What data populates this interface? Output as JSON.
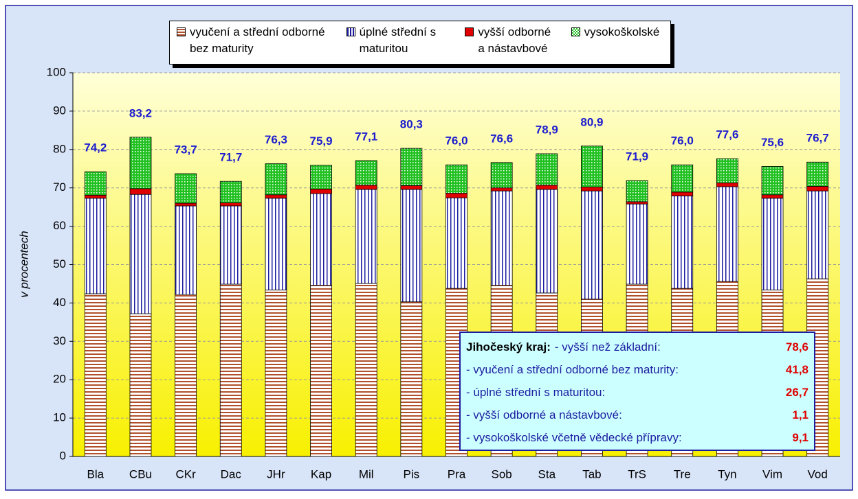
{
  "chart_data": {
    "type": "stacked_bar",
    "y_label": "v procentech",
    "categories": [
      "Bla",
      "CBu",
      "CKr",
      "Dac",
      "JHr",
      "Kap",
      "Mil",
      "Pis",
      "Pra",
      "Sob",
      "Sta",
      "Tab",
      "TrS",
      "Tre",
      "Tyn",
      "Vim",
      "Vod"
    ],
    "series": [
      {
        "name": "vyučení a střední odborné bez maturity",
        "color": "#b0502a",
        "pattern": "horizontal",
        "values": [
          42.4,
          37.2,
          42.2,
          44.9,
          43.4,
          44.6,
          45.1,
          40.3,
          43.8,
          44.6,
          42.6,
          41.0,
          44.9,
          43.8,
          45.6,
          43.4,
          46.3
        ]
      },
      {
        "name": "úplné střední s maturitou",
        "color": "#1c1ca0",
        "pattern": "vertical",
        "values": [
          24.9,
          31.1,
          23.1,
          20.4,
          23.9,
          23.9,
          24.5,
          29.3,
          23.6,
          24.6,
          27.0,
          28.2,
          20.9,
          24.1,
          24.7,
          23.9,
          22.9
        ]
      },
      {
        "name": "vyšší odborné a nástavbové",
        "color": "#e00000",
        "pattern": "solid",
        "values": [
          0.8,
          1.5,
          0.7,
          0.8,
          0.9,
          1.2,
          1.1,
          1.0,
          1.2,
          0.8,
          1.1,
          1.0,
          0.6,
          1.0,
          1.0,
          0.9,
          1.2
        ]
      },
      {
        "name": "vysokoškolské",
        "color": "#20c020",
        "pattern": "checker",
        "values": [
          6.1,
          13.4,
          7.7,
          5.6,
          8.1,
          6.2,
          6.4,
          9.7,
          7.4,
          6.6,
          8.2,
          10.7,
          5.5,
          7.1,
          6.3,
          7.4,
          6.3
        ]
      }
    ],
    "totals": [
      74.2,
      83.2,
      73.7,
      71.7,
      76.3,
      75.9,
      77.1,
      80.3,
      76.0,
      76.6,
      78.9,
      80.9,
      71.9,
      76.0,
      77.6,
      75.6,
      76.7
    ],
    "total_labels": [
      "74,2",
      "83,2",
      "73,7",
      "71,7",
      "76,3",
      "75,9",
      "77,1",
      "80,3",
      "76,0",
      "76,6",
      "78,9",
      "80,9",
      "71,9",
      "76,0",
      "77,6",
      "75,6",
      "76,7"
    ],
    "ylim": [
      0,
      100
    ],
    "yticks": [
      0,
      10,
      20,
      30,
      40,
      50,
      60,
      70,
      80,
      90,
      100
    ],
    "grid": true,
    "annotation": {
      "title": "Jihočeský kraj:",
      "items": [
        "- vyšší než základní:",
        "- vyučení a střední odborné bez maturity:",
        "- úplné střední s maturitou:",
        "- vyšší odborné a nástavbové:",
        "- vysokoškolské včetně vědecké přípravy:"
      ],
      "values": [
        78.6,
        41.8,
        26.7,
        1.1,
        9.1
      ],
      "value_labels": [
        "78,6",
        "41,8",
        "26,7",
        "1,1",
        "9,1"
      ]
    }
  }
}
